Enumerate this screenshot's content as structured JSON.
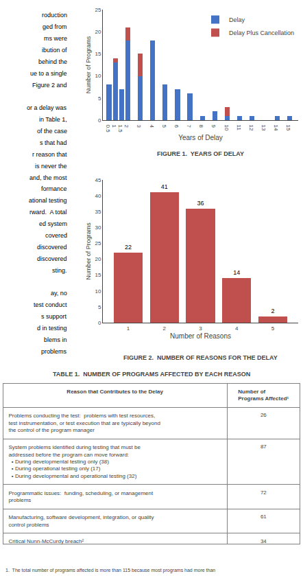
{
  "chart_data": [
    {
      "type": "bar",
      "title": "FIGURE 1.  YEARS OF DELAY",
      "xlabel": "Years of Delay",
      "ylabel": "Number of Programs",
      "stacked": true,
      "x": [
        0.5,
        1,
        1.5,
        2,
        3,
        4,
        5,
        6,
        7,
        8,
        9,
        10,
        11,
        12,
        13,
        14,
        15
      ],
      "series": [
        {
          "name": "Delay",
          "color": "#4472c4",
          "values": [
            8,
            13,
            7,
            18,
            10,
            18,
            8,
            7,
            6,
            1,
            2,
            1,
            1,
            1,
            0,
            1,
            1
          ]
        },
        {
          "name": "Delay Plus Cancellation",
          "color": "#c0504d",
          "values": [
            null,
            1,
            null,
            3,
            5,
            null,
            null,
            null,
            null,
            null,
            null,
            2,
            null,
            null,
            null,
            null,
            null
          ]
        }
      ],
      "xlim": [
        0,
        15.7
      ],
      "xticks": [
        0.5,
        1,
        1.5,
        2,
        3,
        4,
        5,
        6,
        7,
        8,
        9,
        10,
        11,
        12,
        13,
        14,
        15
      ],
      "ylim": [
        0,
        25
      ],
      "yticks": [
        0,
        5,
        10,
        15,
        20,
        25
      ],
      "legend": "upper right",
      "grid": false
    },
    {
      "type": "bar",
      "title": "FIGURE 2.  NUMBER OF REASONS FOR THE DELAY",
      "xlabel": "Number of Reasons",
      "ylabel": "Number of Programs",
      "x": [
        1,
        2,
        3,
        4,
        5
      ],
      "values": [
        22,
        41,
        36,
        14,
        2
      ],
      "color": "#c0504d",
      "data_labels": true,
      "xlim": [
        0.3,
        5.7
      ],
      "xticks": [
        1,
        2,
        3,
        4,
        5
      ],
      "ylim": [
        0,
        45
      ],
      "yticks": [
        0,
        5,
        10,
        15,
        20,
        25,
        30,
        35,
        40,
        45
      ],
      "grid": false
    },
    {
      "type": "table",
      "title": "TABLE 1.  NUMBER OF PROGRAMS AFFECTED BY EACH REASON",
      "columns": [
        "Reason that Contributes to the Delay",
        "Number of\nPrograms Affected¹"
      ],
      "rows": [
        {
          "reason": "Problems conducting the test:  problems with test resources,\ntest instrumentation, or test execution that are typically beyond\nthe control of the program manager",
          "value": 26
        },
        {
          "reason": "System problems identified during testing that must be\naddressed before the program can move forward:\n  • During developmental testing only (38)\n  • During operational testing only (17)\n  • During developmental and operational testing (32)",
          "value": 87
        },
        {
          "reason": "Programmatic issues:  funding, scheduling, or management\nproblems",
          "value": 72
        },
        {
          "reason": "Manufacturing, software development, integration, or quality\ncontrol problems",
          "value": 61
        },
        {
          "reason": "Critical Nunn-McCurdy breach²",
          "value": 34
        }
      ],
      "footnote": "1.  The total number of programs affected is more than 115 because most programs had more than"
    },
    {
      "type": "text",
      "lines": [
        "roduction",
        "ged from",
        "ms were",
        "ibution of",
        "behind the",
        "ue to a single",
        "Figure 2 and",
        null,
        "or a delay was",
        "in Table 1,",
        "of the case",
        "s that had",
        "r reason that",
        "is never the",
        "and, the most",
        "formance",
        "ational testing",
        "rward.  A total",
        "ed system",
        "covered",
        "discovered",
        "discovered",
        "sting.",
        null,
        "ay, no",
        "test conduct",
        "s support",
        "d in testing",
        "blems in",
        "problems"
      ]
    }
  ]
}
